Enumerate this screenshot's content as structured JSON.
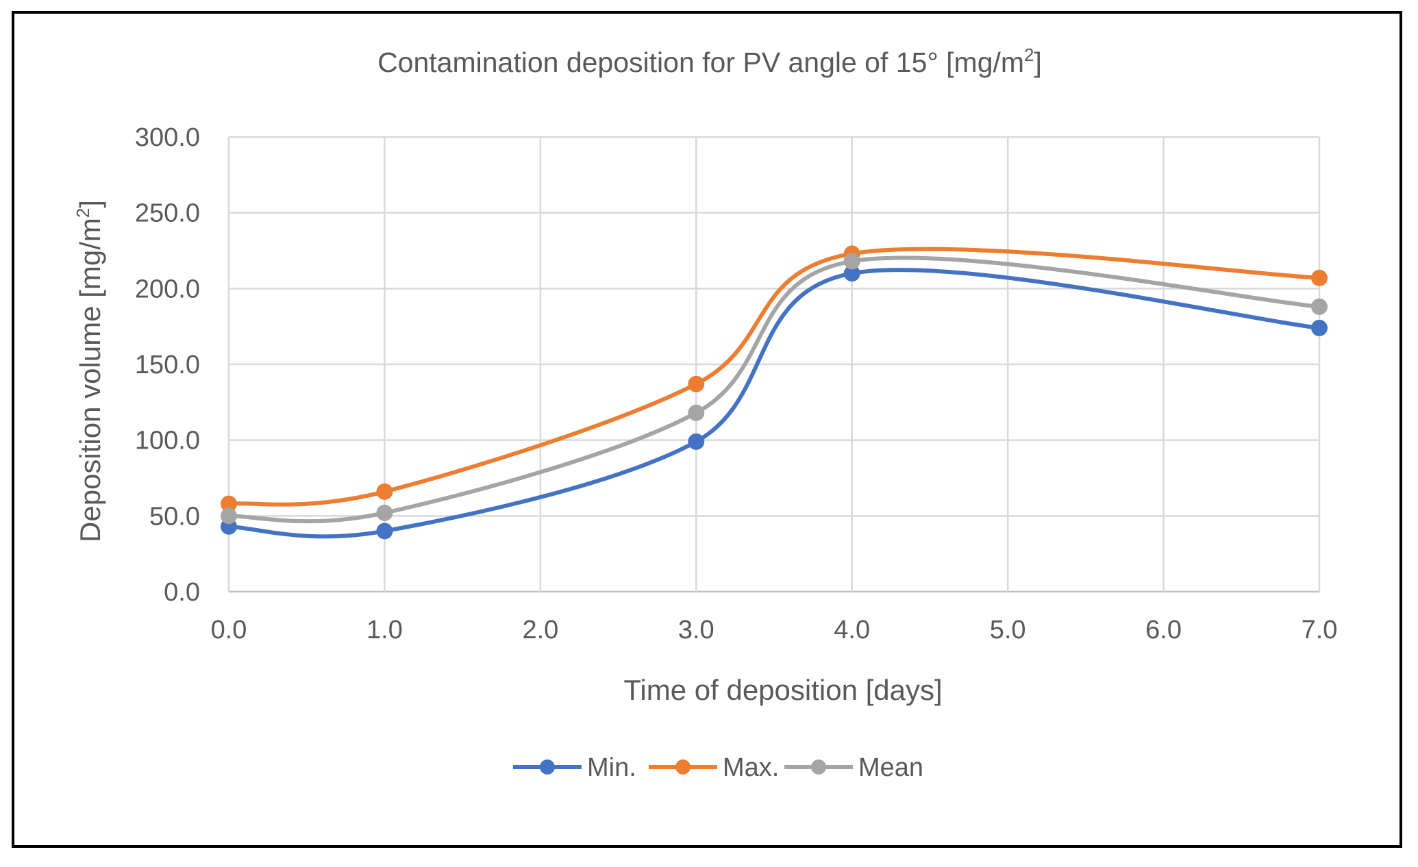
{
  "chart_data": {
    "type": "line",
    "title": "Contamination deposition for PV angle of 15° [mg/m",
    "title_sup": "2",
    "title_end": "]",
    "xlabel": "Time of deposition [days]",
    "ylabel": "Deposition volume [mg/m",
    "ylabel_sup": "2",
    "ylabel_end": "]",
    "xlim": [
      0,
      7
    ],
    "ylim": [
      0,
      300
    ],
    "x_ticks": [
      0,
      1,
      2,
      3,
      4,
      5,
      6,
      7
    ],
    "x_tick_labels": [
      "0.0",
      "1.0",
      "2.0",
      "3.0",
      "4.0",
      "5.0",
      "6.0",
      "7.0"
    ],
    "y_ticks": [
      0,
      50,
      100,
      150,
      200,
      250,
      300
    ],
    "y_tick_labels": [
      "0.0",
      "50.0",
      "100.0",
      "150.0",
      "200.0",
      "250.0",
      "300.0"
    ],
    "grid": true,
    "smooth": true,
    "legend_position": "bottom",
    "x": [
      0,
      1,
      3,
      4,
      7
    ],
    "series": [
      {
        "name": "Min.",
        "color": "#4472C4",
        "values": [
          43,
          40,
          99,
          210,
          174
        ]
      },
      {
        "name": "Max.",
        "color": "#ED7D31",
        "values": [
          58,
          66,
          137,
          223,
          207
        ]
      },
      {
        "name": "Mean",
        "color": "#A5A5A5",
        "values": [
          50,
          52,
          118,
          218,
          188
        ]
      }
    ]
  }
}
